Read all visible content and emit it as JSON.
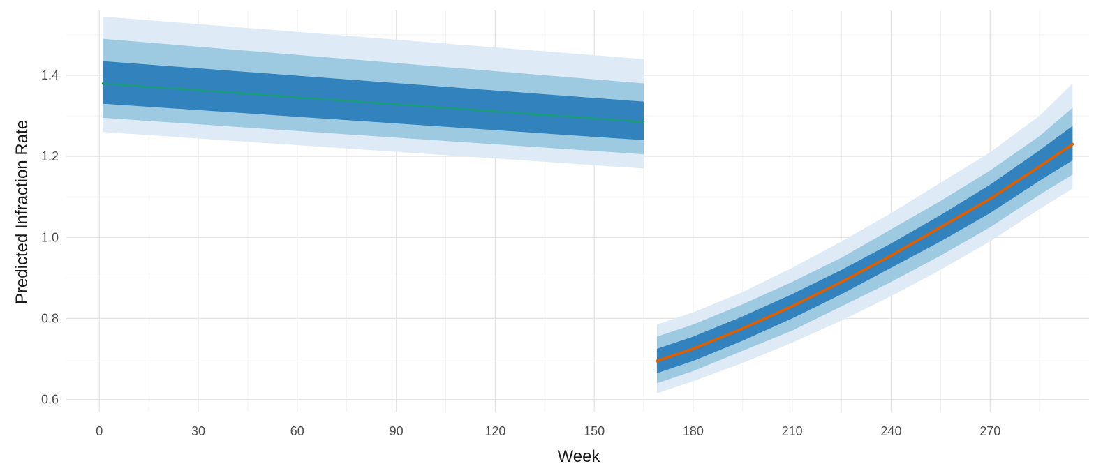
{
  "chart_data": {
    "type": "line",
    "xlabel": "Week",
    "ylabel": "Predicted Infraction Rate",
    "xlim": [
      -10,
      300
    ],
    "ylim": [
      0.57,
      1.56
    ],
    "x_ticks": [
      0,
      30,
      60,
      90,
      120,
      150,
      180,
      210,
      240,
      270
    ],
    "y_ticks": [
      0.6,
      0.8,
      1.0,
      1.2,
      1.4
    ],
    "x_tick_labels": [
      "0",
      "30",
      "60",
      "90",
      "120",
      "150",
      "180",
      "210",
      "240",
      "270"
    ],
    "y_tick_labels": [
      "0.6",
      "0.8",
      "1.0",
      "1.2",
      "1.4"
    ],
    "grid": true,
    "series": [
      {
        "color": "#1b9e77",
        "x": [
          1,
          165
        ],
        "y": [
          1.38,
          1.285
        ],
        "bands": [
          {
            "level": "outer",
            "color": "#deebf7",
            "lower": [
              1.26,
              1.17
            ],
            "upper": [
              1.545,
              1.44
            ]
          },
          {
            "level": "middle",
            "color": "#9ecae1",
            "lower": [
              1.295,
              1.205
            ],
            "upper": [
              1.49,
              1.38
            ]
          },
          {
            "level": "inner",
            "color": "#3182bd",
            "lower": [
              1.33,
              1.24
            ],
            "upper": [
              1.435,
              1.335
            ]
          }
        ]
      },
      {
        "color": "#d95f02",
        "x": [
          169,
          180,
          195,
          210,
          225,
          240,
          255,
          270,
          285,
          295
        ],
        "y": [
          0.695,
          0.725,
          0.775,
          0.83,
          0.89,
          0.955,
          1.025,
          1.095,
          1.175,
          1.23
        ],
        "bands": [
          {
            "level": "outer",
            "color": "#deebf7",
            "lower": [
              0.615,
              0.645,
              0.69,
              0.74,
              0.795,
              0.855,
              0.92,
              0.99,
              1.07,
              1.12
            ],
            "upper": [
              0.785,
              0.815,
              0.865,
              0.925,
              0.99,
              1.06,
              1.135,
              1.21,
              1.3,
              1.38
            ]
          },
          {
            "level": "middle",
            "color": "#9ecae1",
            "lower": [
              0.64,
              0.67,
              0.72,
              0.77,
              0.83,
              0.89,
              0.955,
              1.025,
              1.105,
              1.155
            ],
            "upper": [
              0.755,
              0.785,
              0.835,
              0.89,
              0.95,
              1.02,
              1.09,
              1.165,
              1.25,
              1.32
            ]
          },
          {
            "level": "inner",
            "color": "#3182bd",
            "lower": [
              0.665,
              0.695,
              0.745,
              0.8,
              0.86,
              0.925,
              0.99,
              1.06,
              1.14,
              1.19
            ],
            "upper": [
              0.725,
              0.755,
              0.805,
              0.86,
              0.92,
              0.985,
              1.055,
              1.13,
              1.215,
              1.275
            ]
          }
        ]
      }
    ]
  }
}
